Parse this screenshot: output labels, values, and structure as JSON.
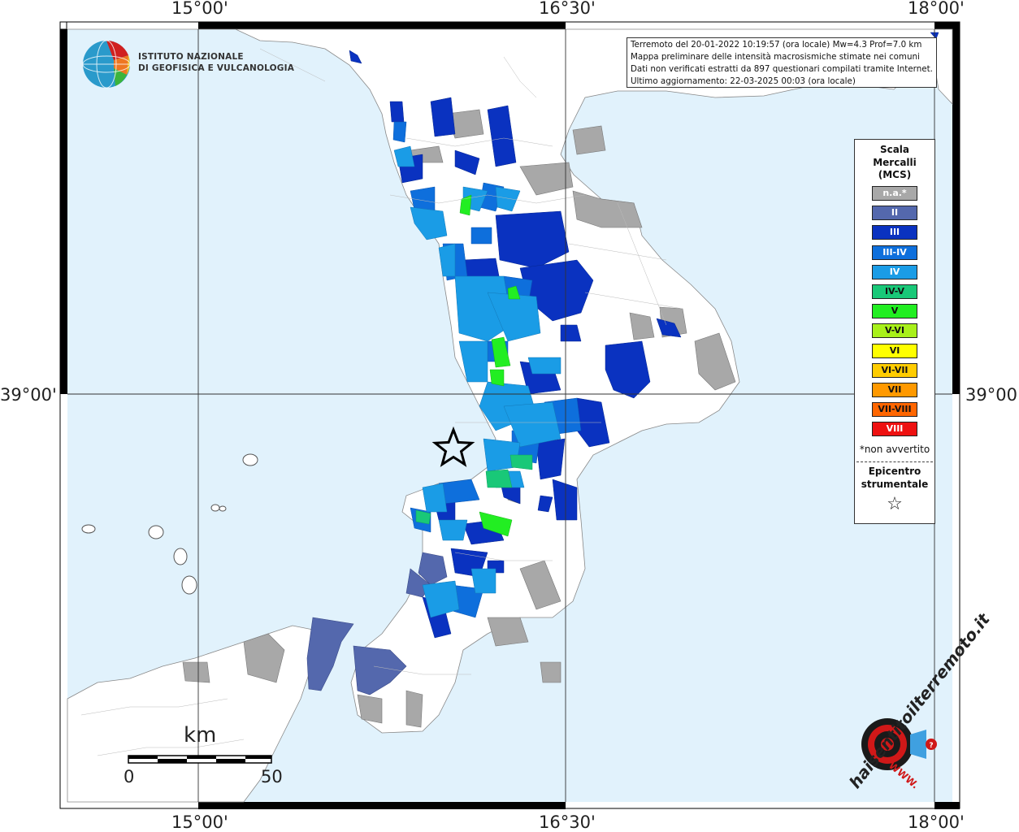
{
  "coords": {
    "top": [
      "15°00'",
      "16°30'",
      "18°00'"
    ],
    "bottom": [
      "15°00'",
      "16°30'",
      "18°00'"
    ],
    "left": "39°00'",
    "right": "39°00'"
  },
  "ingv": {
    "line1": "ISTITUTO NAZIONALE",
    "line2": "DI GEOFISICA E VULCANOLOGIA"
  },
  "info": {
    "line1": "Terremoto del 20-01-2022 10:19:57 (ora locale) Mw=4.3 Prof=7.0 km",
    "line2": "Mappa preliminare delle intensità macrosismiche stimate nei comuni",
    "line3": "Dati non verificati estratti da 897 questionari compilati tramite Internet.",
    "line4": "Ultimo aggiornamento: 22-03-2025 00:03 (ora locale)"
  },
  "legend": {
    "title1": "Scala",
    "title2": "Mercalli",
    "title3": "(MCS)",
    "items": [
      {
        "label": "n.a.*",
        "color": "#a8a8a8",
        "text": "#ffffff"
      },
      {
        "label": "II",
        "color": "#5468ad",
        "text": "#ffffff"
      },
      {
        "label": "III",
        "color": "#0a32c0",
        "text": "#ffffff"
      },
      {
        "label": "III-IV",
        "color": "#0e6fdc",
        "text": "#ffffff"
      },
      {
        "label": "IV",
        "color": "#1a9ce6",
        "text": "#ffffff"
      },
      {
        "label": "IV-V",
        "color": "#19c878",
        "text": "#111111"
      },
      {
        "label": "V",
        "color": "#22ee22",
        "text": "#111111"
      },
      {
        "label": "V-VI",
        "color": "#a8f01a",
        "text": "#111111"
      },
      {
        "label": "VI",
        "color": "#ffff00",
        "text": "#111111"
      },
      {
        "label": "VI-VII",
        "color": "#ffcc00",
        "text": "#111111"
      },
      {
        "label": "VII",
        "color": "#ff9900",
        "text": "#111111"
      },
      {
        "label": "VII-VIII",
        "color": "#ff6600",
        "text": "#111111"
      },
      {
        "label": "VIII",
        "color": "#ee1111",
        "text": "#ffffff"
      }
    ],
    "note": "*non avvertito",
    "epicentro1": "Epicentro",
    "epicentro2": "strumentale",
    "star": "☆"
  },
  "scale": {
    "unit": "km",
    "zero": "0",
    "fifty": "50"
  },
  "logo": {
    "text": "haisentitoilterremoto.it",
    "www": "WWW."
  },
  "colors": {
    "sea": "#e1f2fc",
    "land": "#ffffff",
    "border": "#999999"
  }
}
